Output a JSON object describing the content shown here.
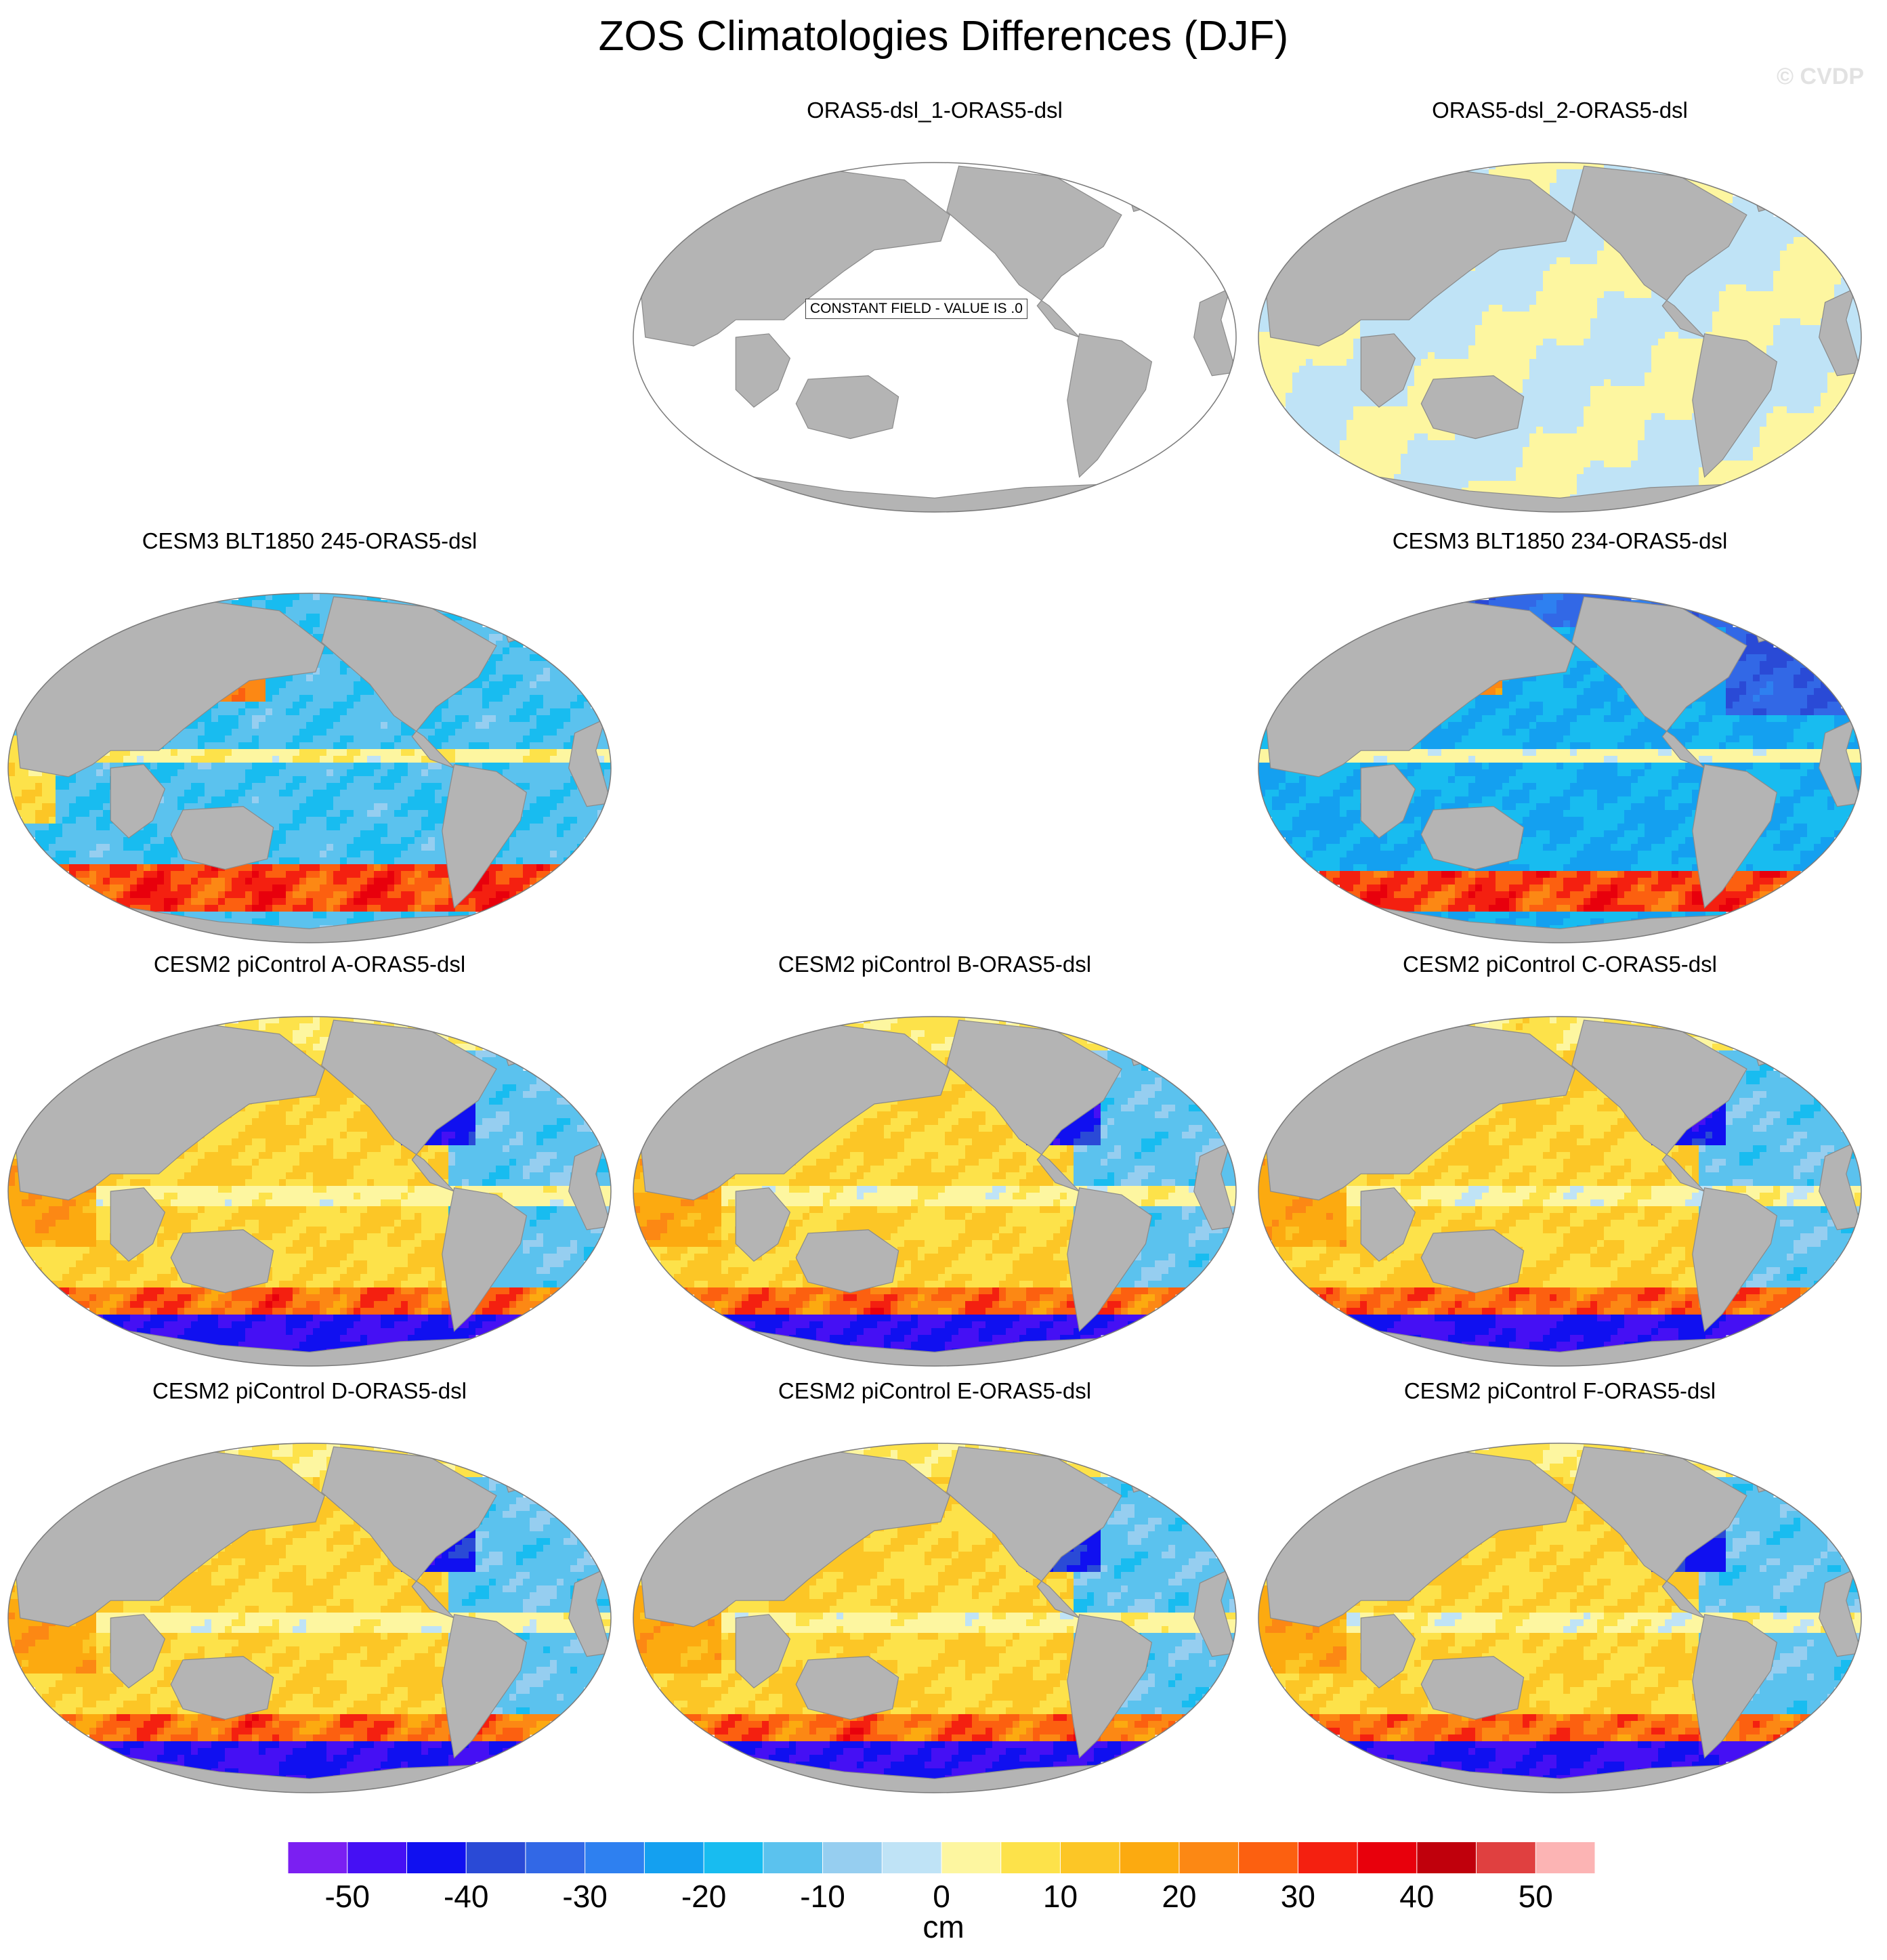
{
  "title": "ZOS Climatologies Differences (DJF)",
  "watermark": "© CVDP",
  "colors": {
    "land": "#b4b4b4",
    "ocean_border": "#7a7a7a",
    "levels": [
      "#7b1ff2",
      "#4510f4",
      "#1010f0",
      "#2a4ad6",
      "#3268e6",
      "#2e80f0",
      "#14a0f0",
      "#18bcf0",
      "#5bc2ee",
      "#96cef0",
      "#bfe3f6",
      "#fdf6a0",
      "#fde24a",
      "#fcc626",
      "#fcaa10",
      "#fc8814",
      "#fc6010",
      "#f42010",
      "#e8000c",
      "#c0000c",
      "#e04040",
      "#fcb4b4"
    ]
  },
  "chart_data": {
    "type": "heatmap",
    "colorbar": {
      "label": "cm",
      "levels": [
        -55,
        -50,
        -45,
        -40,
        -35,
        -30,
        -25,
        -20,
        -15,
        -10,
        -5,
        0,
        5,
        10,
        15,
        20,
        25,
        30,
        35,
        40,
        45,
        50,
        55
      ],
      "tick_labels": [
        "-50",
        "-40",
        "-30",
        "-20",
        "-10",
        "0",
        "10",
        "20",
        "30",
        "40",
        "50"
      ],
      "tick_values": [
        -50,
        -40,
        -30,
        -20,
        -10,
        0,
        10,
        20,
        30,
        40,
        50
      ]
    },
    "panels": [
      {
        "id": "p1",
        "title": "ORAS5-dsl_1-ORAS5-dsl",
        "pattern": "constant",
        "note": "CONSTANT FIELD - VALUE IS .0"
      },
      {
        "id": "p2",
        "title": "ORAS5-dsl_2-ORAS5-dsl",
        "pattern": "near-zero"
      },
      {
        "id": "p3",
        "title": "CESM3 BLT1850 245-ORAS5-dsl",
        "pattern": "cesm3-245"
      },
      {
        "id": "p4",
        "title": "CESM3 BLT1850 234-ORAS5-dsl",
        "pattern": "cesm3-234"
      },
      {
        "id": "p5",
        "title": "CESM2 piControl A-ORAS5-dsl",
        "pattern": "cesm2"
      },
      {
        "id": "p6",
        "title": "CESM2 piControl B-ORAS5-dsl",
        "pattern": "cesm2"
      },
      {
        "id": "p7",
        "title": "CESM2 piControl C-ORAS5-dsl",
        "pattern": "cesm2"
      },
      {
        "id": "p8",
        "title": "CESM2 piControl D-ORAS5-dsl",
        "pattern": "cesm2"
      },
      {
        "id": "p9",
        "title": "CESM2 piControl E-ORAS5-dsl",
        "pattern": "cesm2"
      },
      {
        "id": "p10",
        "title": "CESM2 piControl F-ORAS5-dsl",
        "pattern": "cesm2"
      }
    ]
  }
}
